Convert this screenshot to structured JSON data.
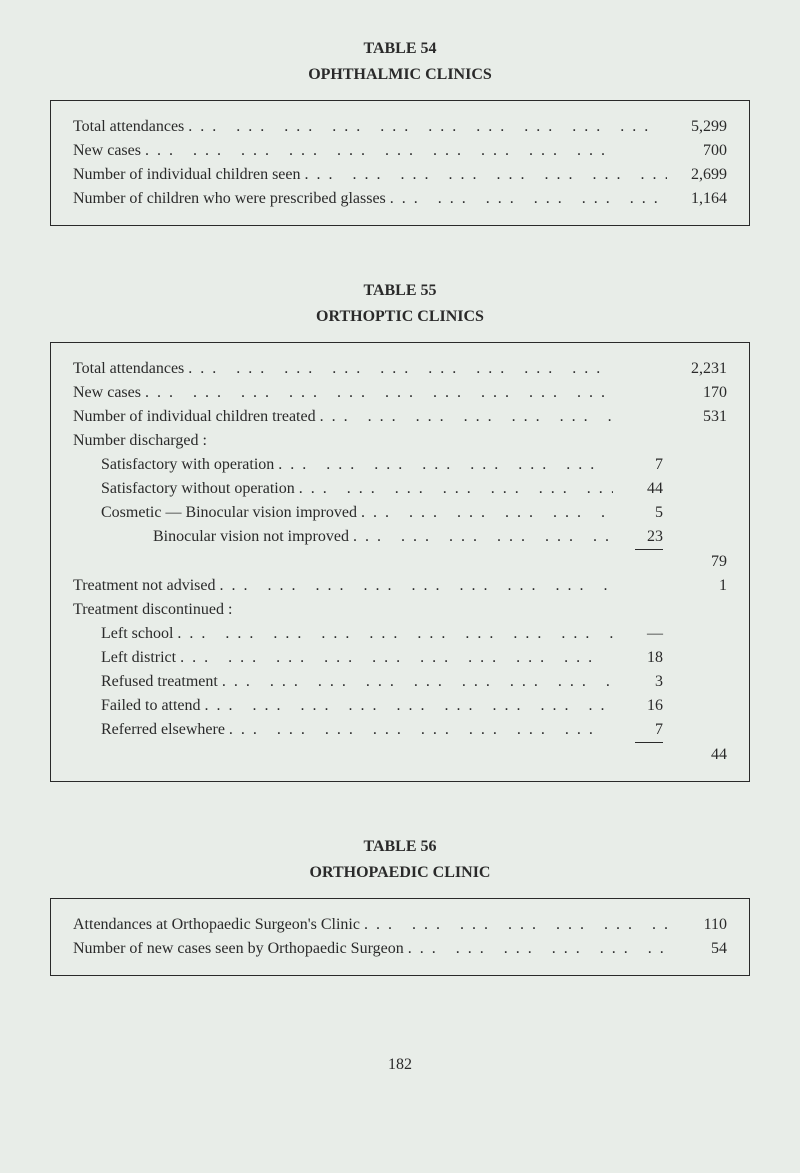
{
  "table54": {
    "number": "TABLE 54",
    "title": "OPHTHALMIC CLINICS",
    "rows": [
      {
        "label": "Total attendances",
        "value": "5,299"
      },
      {
        "label": "New cases",
        "value": "700"
      },
      {
        "label": "Number of individual children seen",
        "value": "2,699"
      },
      {
        "label": "Number of children who were prescribed glasses",
        "value": "1,164"
      }
    ]
  },
  "table55": {
    "number": "TABLE 55",
    "title": "ORTHOPTIC CLINICS",
    "rows": [
      {
        "label": "Total attendances",
        "col2": "2,231"
      },
      {
        "label": "New cases",
        "col2": "170"
      },
      {
        "label": "Number of individual children treated",
        "col2": "531"
      },
      {
        "label": "Number discharged :",
        "plain": true
      },
      {
        "label": "Satisfactory with operation",
        "indent": 1,
        "col1": "7"
      },
      {
        "label": "Satisfactory without operation",
        "indent": 1,
        "col1": "44"
      },
      {
        "label": "Cosmetic — Binocular vision improved",
        "indent": 1,
        "col1": "5"
      },
      {
        "label": "Binocular vision not improved",
        "indent": 2,
        "col1": "23",
        "underline": true
      },
      {
        "label": "",
        "col2": "79"
      },
      {
        "label": "Treatment not advised",
        "col2": "1"
      },
      {
        "label": "Treatment discontinued :",
        "plain": true
      },
      {
        "label": "Left school",
        "indent": 1,
        "col1": "—"
      },
      {
        "label": "Left district",
        "indent": 1,
        "col1": "18"
      },
      {
        "label": "Refused treatment",
        "indent": 1,
        "col1": "3"
      },
      {
        "label": "Failed to attend",
        "indent": 1,
        "col1": "16"
      },
      {
        "label": "Referred elsewhere",
        "indent": 1,
        "col1": "7",
        "underline": true
      },
      {
        "label": "",
        "col2": "44"
      }
    ]
  },
  "table56": {
    "number": "TABLE 56",
    "title": "ORTHOPAEDIC CLINIC",
    "rows": [
      {
        "label": "Attendances at Orthopaedic Surgeon's Clinic",
        "value": "110"
      },
      {
        "label": "Number of new cases seen by Orthopaedic Surgeon",
        "value": "54"
      }
    ]
  },
  "pageNumber": "182",
  "dots": "..."
}
